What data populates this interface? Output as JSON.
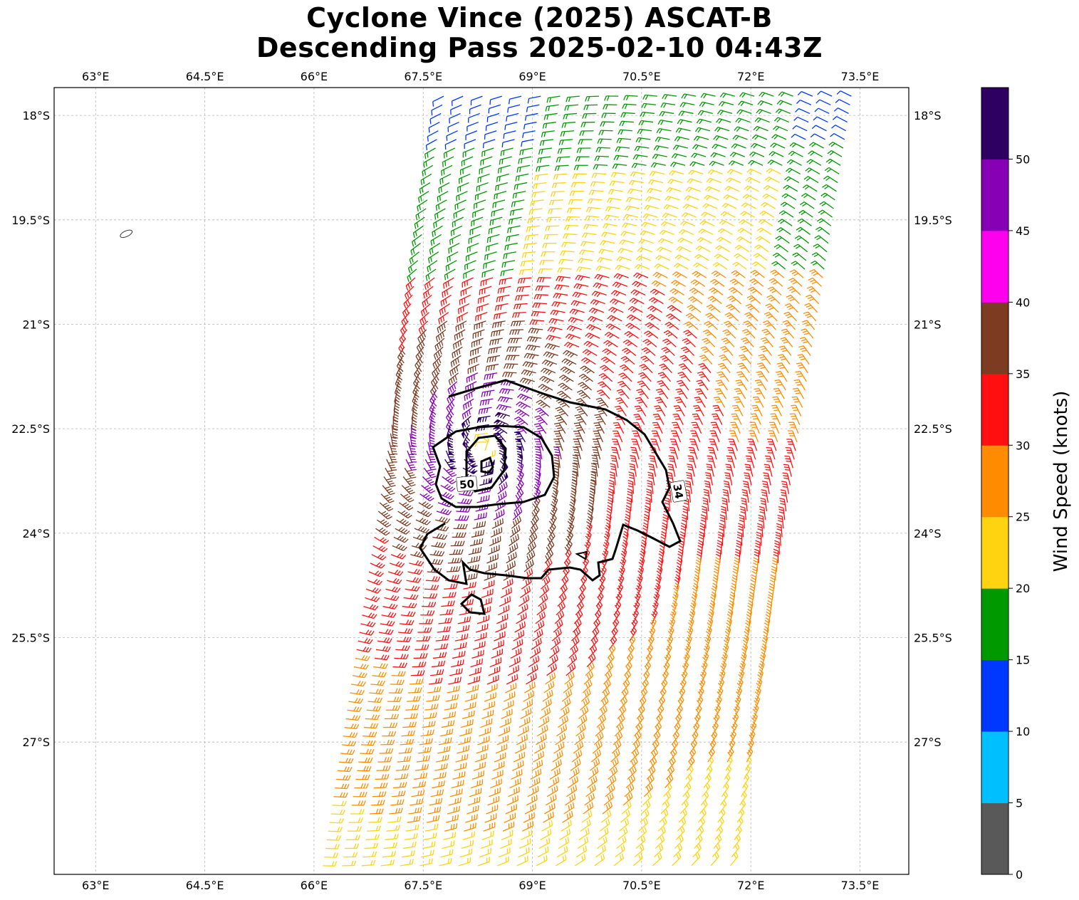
{
  "title": {
    "line1": "Cyclone Vince (2025) ASCAT-B",
    "line2": "Descending Pass 2025-02-10 04:43Z"
  },
  "map": {
    "lon_range": [
      62.43,
      74.17
    ],
    "lat_range": [
      -28.9,
      -17.6
    ],
    "lon_ticks": [
      {
        "value": 63.0,
        "label": "63°E"
      },
      {
        "value": 64.5,
        "label": "64.5°E"
      },
      {
        "value": 66.0,
        "label": "66°E"
      },
      {
        "value": 67.5,
        "label": "67.5°E"
      },
      {
        "value": 69.0,
        "label": "69°E"
      },
      {
        "value": 70.5,
        "label": "70.5°E"
      },
      {
        "value": 72.0,
        "label": "72°E"
      },
      {
        "value": 73.5,
        "label": "73.5°E"
      }
    ],
    "lat_ticks": [
      {
        "value": -18.0,
        "label": "18°S"
      },
      {
        "value": -19.5,
        "label": "19.5°S"
      },
      {
        "value": -21.0,
        "label": "21°S"
      },
      {
        "value": -22.5,
        "label": "22.5°S"
      },
      {
        "value": -24.0,
        "label": "24°S"
      },
      {
        "value": -25.5,
        "label": "25.5°S"
      },
      {
        "value": -27.0,
        "label": "27°S"
      }
    ],
    "gridlines": true,
    "island": {
      "lon": 63.42,
      "lat": -19.7
    },
    "storm_center": {
      "lon": 68.33,
      "lat": -22.8
    },
    "swath": {
      "note_hidden": false,
      "top_left": {
        "lon": 67.8,
        "lat": -17.6
      },
      "top_right": {
        "lon": 73.4,
        "lat": -17.6
      },
      "bottom_left": {
        "lon": 66.1,
        "lat": -28.9
      },
      "bottom_right": {
        "lon": 71.7,
        "lat": -28.9
      }
    },
    "contours": [
      {
        "label": "34",
        "label_lon": 71.0,
        "label_lat": -23.4
      },
      {
        "label": "50",
        "label_lon": 68.1,
        "label_lat": -23.3
      }
    ]
  },
  "colorbar": {
    "label": "Wind Speed (knots)",
    "ticks": [
      "0",
      "5",
      "10",
      "15",
      "20",
      "25",
      "30",
      "35",
      "40",
      "45",
      "50"
    ],
    "colors": [
      "#595959",
      "#00bfff",
      "#0038ff",
      "#009900",
      "#ffd30f",
      "#ff8c00",
      "#ff0f0f",
      "#7d3b22",
      "#ff00ee",
      "#8800b5",
      "#2e0061"
    ]
  }
}
